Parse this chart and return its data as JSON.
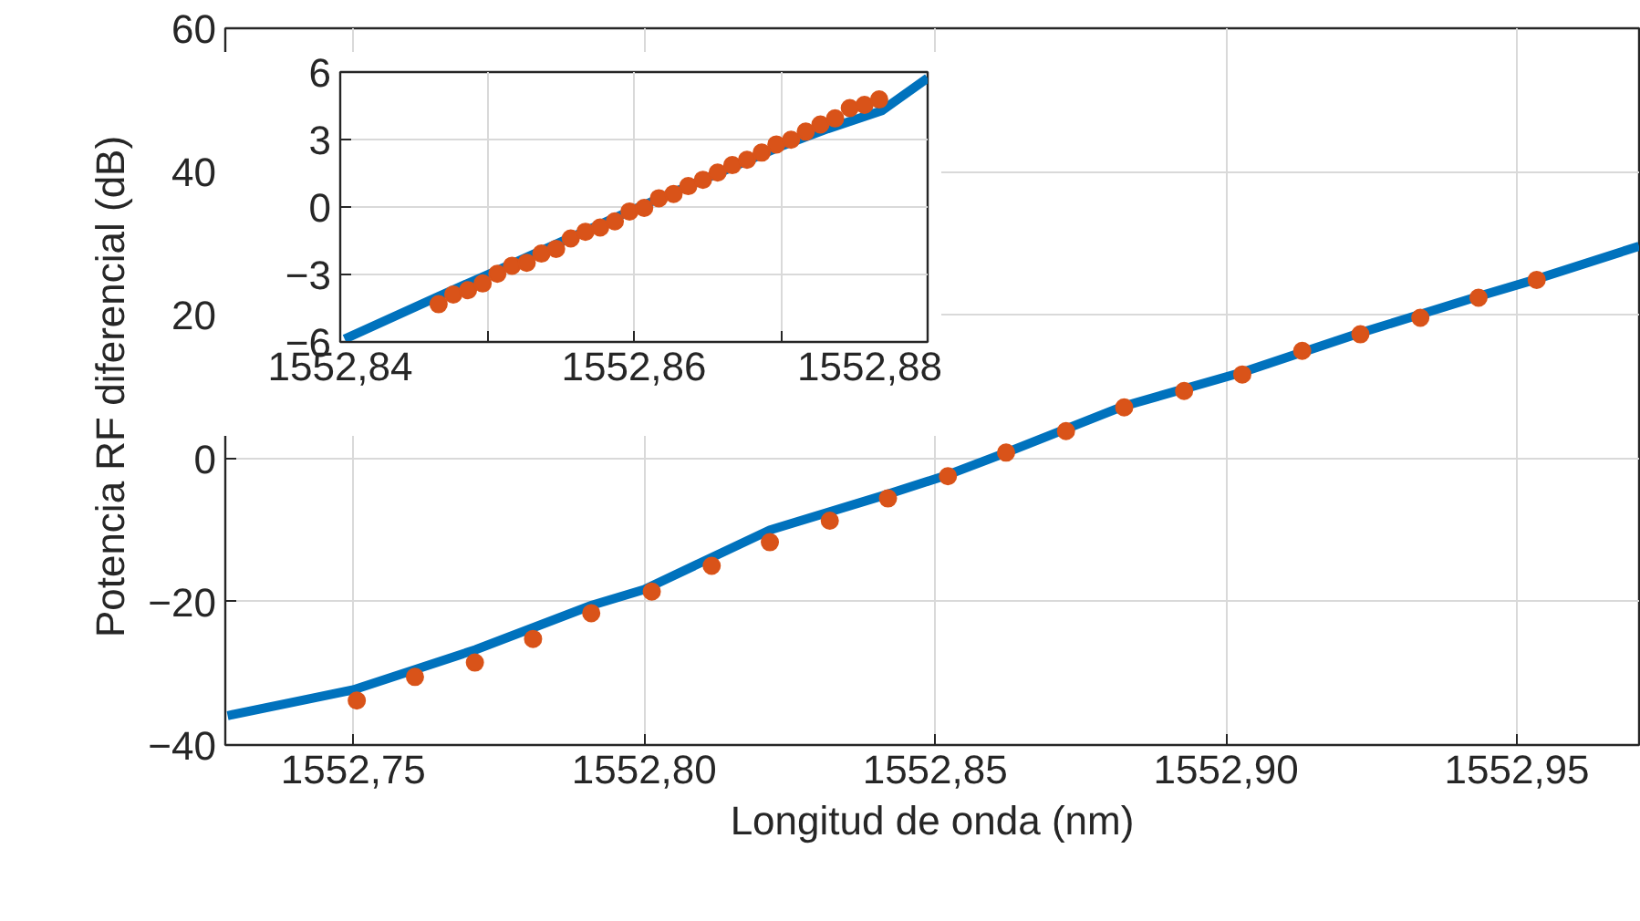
{
  "chart_data": [
    {
      "type": "line",
      "xlabel": "Longitud de onda (nm)",
      "ylabel": "Potencia RF diferencial (dB)",
      "xlim": [
        1552.728,
        1552.971
      ],
      "ylim": [
        -40,
        60
      ],
      "xticks": [
        {
          "value": 1552.75,
          "label": "1552,75"
        },
        {
          "value": 1552.8,
          "label": "1552,80"
        },
        {
          "value": 1552.85,
          "label": "1552,85"
        },
        {
          "value": 1552.9,
          "label": "1552,90"
        },
        {
          "value": 1552.95,
          "label": "1552,95"
        }
      ],
      "yticks": [
        {
          "value": -40,
          "label": "−40"
        },
        {
          "value": -20,
          "label": "−20"
        },
        0,
        20,
        40,
        60
      ],
      "grid": true,
      "series": [
        {
          "color": "#0072bd",
          "x": [
            1552.7284,
            1552.75,
            1552.771,
            1552.791,
            1552.8,
            1552.8216,
            1552.8419,
            1552.8522,
            1552.8622,
            1552.8825,
            1552.9028,
            1552.9231,
            1552.9434,
            1552.9534,
            1552.971
          ],
          "values": [
            -35.9,
            -32.3,
            -26.7,
            -20.5,
            -18.3,
            -10.0,
            -5.0,
            -2.3,
            0.8,
            7.3,
            12.0,
            17.5,
            22.6,
            25.0,
            29.6
          ]
        },
        {
          "type": "scatter",
          "color": "#d95319",
          "x": [
            1552.7506,
            1552.7606,
            1552.7709,
            1552.7809,
            1552.7909,
            1552.8013,
            1552.8116,
            1552.8216,
            1552.8319,
            1552.8419,
            1552.8522,
            1552.8622,
            1552.8725,
            1552.8825,
            1552.8928,
            1552.9028,
            1552.9131,
            1552.9231,
            1552.9334,
            1552.9434,
            1552.9534
          ],
          "values": [
            -33.8,
            -30.5,
            -28.5,
            -25.2,
            -21.6,
            -18.6,
            -15.0,
            -11.7,
            -8.7,
            -5.6,
            -2.5,
            0.8,
            3.8,
            7.1,
            9.4,
            11.7,
            15.0,
            17.3,
            19.6,
            22.4,
            24.9
          ]
        }
      ]
    },
    {
      "type": "line",
      "xlim": [
        1552.84,
        1552.88
      ],
      "ylim": [
        -6,
        6
      ],
      "xticks": [
        {
          "value": 1552.84,
          "label": "1552,84"
        },
        {
          "value": 1552.85,
          "label": null
        },
        {
          "value": 1552.86,
          "label": "1552,86"
        },
        {
          "value": 1552.87,
          "label": null
        },
        {
          "value": 1552.88,
          "label": "1552,88"
        }
      ],
      "yticks": [
        {
          "value": -6,
          "label": "−6"
        },
        {
          "value": -3,
          "label": "−3"
        },
        0,
        3,
        6
      ],
      "grid": true,
      "series": [
        {
          "color": "#0072bd",
          "x": [
            1552.8403,
            1552.8467,
            1552.85,
            1552.86,
            1552.8699,
            1552.8732,
            1552.8769,
            1552.88
          ],
          "values": [
            -5.87,
            -3.97,
            -3.02,
            -0.1,
            2.67,
            3.48,
            4.29,
            5.73
          ]
        },
        {
          "type": "scatter",
          "color": "#d95319",
          "x": [
            1552.8467,
            1552.8477,
            1552.8487,
            1552.8497,
            1552.8507,
            1552.8517,
            1552.8527,
            1552.8537,
            1552.8547,
            1552.8557,
            1552.8567,
            1552.8577,
            1552.8587,
            1552.8597,
            1552.8607,
            1552.8617,
            1552.8627,
            1552.8637,
            1552.8647,
            1552.8657,
            1552.8667,
            1552.8677,
            1552.8687,
            1552.8697,
            1552.8707,
            1552.8717,
            1552.8727,
            1552.8737,
            1552.8747,
            1552.8757,
            1552.8767
          ],
          "values": [
            -4.32,
            -3.89,
            -3.7,
            -3.4,
            -2.97,
            -2.61,
            -2.48,
            -2.07,
            -1.86,
            -1.4,
            -1.1,
            -0.91,
            -0.64,
            -0.2,
            -0.04,
            0.39,
            0.58,
            0.93,
            1.21,
            1.53,
            1.86,
            2.1,
            2.42,
            2.78,
            2.99,
            3.35,
            3.67,
            3.94,
            4.4,
            4.54,
            4.78
          ]
        }
      ]
    }
  ]
}
